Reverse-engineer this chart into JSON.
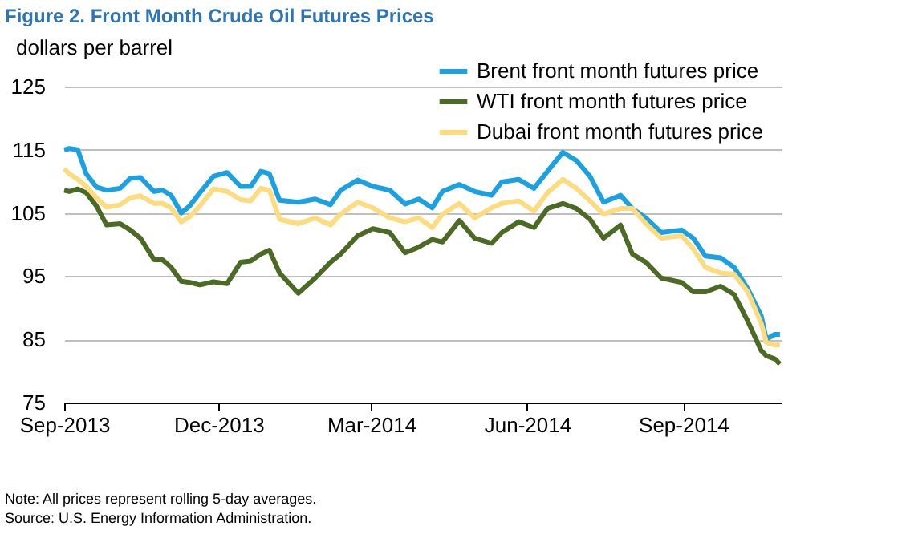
{
  "chart_data": {
    "type": "line",
    "title": "Figure 2. Front Month Crude Oil Futures Prices",
    "ylabel": "dollars per barrel",
    "x": [
      "2013-09-01",
      "2013-09-04",
      "2013-09-09",
      "2013-09-14",
      "2013-09-20",
      "2013-09-26",
      "2013-10-04",
      "2013-10-10",
      "2013-10-16",
      "2013-10-24",
      "2013-10-29",
      "2013-11-03",
      "2013-11-09",
      "2013-11-14",
      "2013-11-20",
      "2013-11-28",
      "2013-12-06",
      "2013-12-14",
      "2013-12-20",
      "2013-12-26",
      "2013-12-31",
      "2014-01-06",
      "2014-01-17",
      "2014-01-27",
      "2014-02-05",
      "2014-02-11",
      "2014-02-21",
      "2014-03-02",
      "2014-03-12",
      "2014-03-21",
      "2014-03-29",
      "2014-04-06",
      "2014-04-12",
      "2014-04-22",
      "2014-05-01",
      "2014-05-11",
      "2014-05-17",
      "2014-05-27",
      "2014-06-05",
      "2014-06-13",
      "2014-06-22",
      "2014-06-30",
      "2014-07-08",
      "2014-07-16",
      "2014-07-26",
      "2014-08-02",
      "2014-08-10",
      "2014-08-19",
      "2014-08-31",
      "2014-09-07",
      "2014-09-14",
      "2014-09-23",
      "2014-10-01",
      "2014-10-09",
      "2014-10-17",
      "2014-10-20",
      "2014-10-25",
      "2014-10-28"
    ],
    "series": [
      {
        "name": "Brent front month futures price",
        "color": "#1ba1e2",
        "values": [
          115,
          115.2,
          115,
          111.2,
          109.1,
          108.6,
          108.9,
          110.5,
          110.6,
          108.4,
          108.6,
          107.8,
          105,
          106.1,
          108.2,
          110.8,
          111.4,
          109.2,
          109.2,
          111.6,
          111.2,
          107,
          106.7,
          107.2,
          106.3,
          108.6,
          110.2,
          109.2,
          108.6,
          106.4,
          107.2,
          105.8,
          108.4,
          109.5,
          108.4,
          107.8,
          109.9,
          110.3,
          108.9,
          111.6,
          114.6,
          113.3,
          110.8,
          106.7,
          107.8,
          105.7,
          104.2,
          101.9,
          102.3,
          101,
          98.2,
          97.9,
          96.4,
          93,
          88.7,
          85,
          85.8,
          85.8
        ]
      },
      {
        "name": "WTI front month futures price",
        "color": "#4b6a23",
        "values": [
          108.6,
          108.4,
          108.8,
          108.2,
          106.1,
          103.1,
          103.3,
          102.3,
          101,
          97.6,
          97.6,
          96.4,
          94.2,
          94,
          93.6,
          94.1,
          93.8,
          97.2,
          97.4,
          98.5,
          99.1,
          95.5,
          92.3,
          94.7,
          97.2,
          98.5,
          101.4,
          102.5,
          101.9,
          98.7,
          99.6,
          100.8,
          100.4,
          103.8,
          101,
          100.2,
          101.9,
          103.6,
          102.7,
          105.7,
          106.5,
          105.7,
          104,
          101,
          103.1,
          98.5,
          97.2,
          94.7,
          94,
          92.5,
          92.5,
          93.4,
          92.1,
          87.9,
          83.2,
          82.4,
          81.9,
          81.1
        ]
      },
      {
        "name": "Dubai front month futures price",
        "color": "#fddc80",
        "values": [
          112,
          111.2,
          110.3,
          109.2,
          107.4,
          105.9,
          106.3,
          107.4,
          107.7,
          106.5,
          106.5,
          105.8,
          103.6,
          104.4,
          106.1,
          108.8,
          108.4,
          107.1,
          106.9,
          108.9,
          108.6,
          104,
          103.3,
          104.2,
          103.1,
          104.8,
          106.7,
          105.8,
          104.2,
          103.6,
          104.2,
          102.7,
          104.8,
          106.5,
          104.2,
          105.8,
          106.5,
          106.9,
          105.3,
          108.2,
          110.3,
          108.9,
          106.9,
          104.8,
          105.7,
          105.7,
          103.3,
          101,
          101.4,
          99.3,
          96.4,
          95.5,
          95.3,
          92.5,
          87.5,
          84.5,
          84.1,
          84.1
        ]
      }
    ],
    "xlim": [
      "2013-09-01",
      "2014-10-29"
    ],
    "xticks": [
      {
        "value": "2013-09-01",
        "label": "Sep-2013"
      },
      {
        "value": "2013-12-01",
        "label": "Dec-2013"
      },
      {
        "value": "2014-03-01",
        "label": "Mar-2014"
      },
      {
        "value": "2014-06-01",
        "label": "Jun-2014"
      },
      {
        "value": "2014-09-01",
        "label": "Sep-2014"
      }
    ],
    "ylim": [
      75,
      125
    ],
    "yticks": [
      75,
      85,
      95,
      105,
      115,
      125
    ],
    "grid": "y",
    "legend": "top right",
    "marker": "none",
    "line_style": "solid",
    "annotations": [
      "Note: All prices represent rolling 5-day averages.",
      "Source:  U.S. Energy Information Administration."
    ]
  }
}
